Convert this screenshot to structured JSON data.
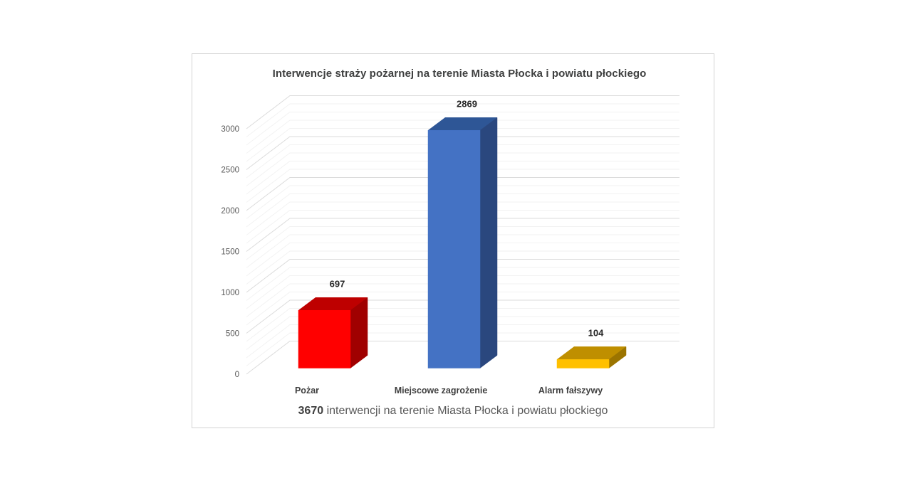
{
  "chart_data": {
    "type": "bar",
    "style": "3d-column",
    "title": "Interwencje straży pożarnej na terenie Miasta Płocka i powiatu płockiego",
    "categories": [
      "Pożar",
      "Miejscowe zagrożenie",
      "Alarm fałszywy"
    ],
    "values": [
      697,
      2869,
      104
    ],
    "data_labels": [
      "697",
      "2869",
      "104"
    ],
    "total": 3670,
    "xlabel": "",
    "ylabel": "",
    "ylim": [
      0,
      3000
    ],
    "major_unit": 500,
    "minor_unit": 100,
    "yticks": [
      "0",
      "500",
      "1000",
      "1500",
      "2000",
      "2500",
      "3000"
    ],
    "legend": "none",
    "grid": {
      "major_color": "#DBDBDB",
      "minor_color": "#F2F2F2"
    },
    "point_colors": [
      {
        "front": "#FF0000",
        "top": "#BE0000",
        "side": "#A00000"
      },
      {
        "front": "#4472C4",
        "top": "#2E5696",
        "side": "#2A477E"
      },
      {
        "front": "#FFC000",
        "top": "#BF8F00",
        "side": "#9B7400"
      }
    ],
    "text_colors": {
      "title": "#3F4040",
      "ticks": "#595959",
      "categories": "#3F3F3F",
      "data_labels": "#262626",
      "footer": "#595959",
      "footer_value": "#404040"
    },
    "footer": {
      "value": "3670",
      "text": "interwencji na terenie Miasta Płocka i powiatu płockiego"
    }
  }
}
